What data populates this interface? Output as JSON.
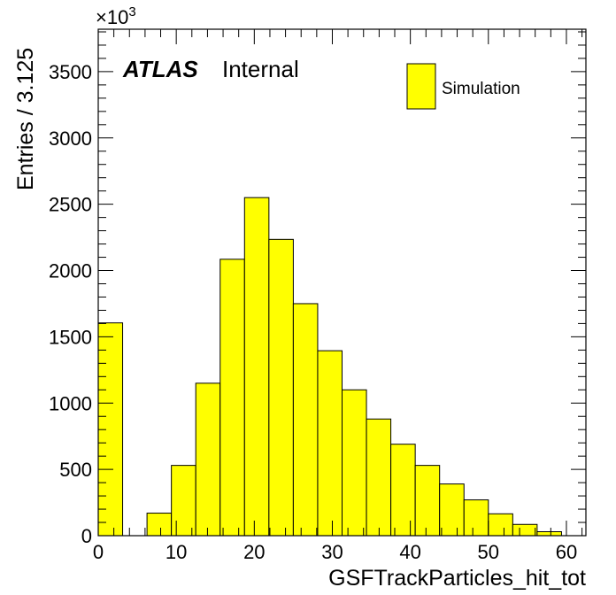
{
  "chart_data": {
    "type": "bar",
    "title": "",
    "xlabel": "GSFTrackParticles_hit_tot",
    "ylabel": "Entries / 3.125",
    "y_multiplier_label": "×10",
    "y_multiplier_exponent": "3",
    "xlim": [
      0,
      62.5
    ],
    "ylim": [
      0,
      3820
    ],
    "x_ticks": [
      0,
      10,
      20,
      30,
      40,
      50,
      60
    ],
    "x_tick_labels": [
      "0",
      "10",
      "20",
      "30",
      "40",
      "50",
      "60"
    ],
    "y_ticks": [
      0,
      500,
      1000,
      1500,
      2000,
      2500,
      3000,
      3500
    ],
    "y_tick_labels": [
      "0",
      "500",
      "1000",
      "1500",
      "2000",
      "2500",
      "3000",
      "3500"
    ],
    "bin_width": 3.125,
    "bin_edges": [
      0,
      3.125,
      6.25,
      9.375,
      12.5,
      15.625,
      18.75,
      21.875,
      25,
      28.125,
      31.25,
      34.375,
      37.5,
      40.625,
      43.75,
      46.875,
      50,
      53.125,
      56.25,
      59.375
    ],
    "series": [
      {
        "name": "Simulation",
        "color": "#ffff00",
        "edge_color": "#000000",
        "values": [
          1605,
          0,
          170,
          530,
          1150,
          2085,
          2550,
          2235,
          1750,
          1395,
          1100,
          880,
          690,
          530,
          390,
          270,
          165,
          85,
          30
        ]
      }
    ],
    "legend": {
      "placement": "top-right",
      "entries": [
        "Simulation"
      ]
    },
    "annotations": {
      "experiment": "ATLAS",
      "status": "Internal"
    },
    "grid": false
  }
}
